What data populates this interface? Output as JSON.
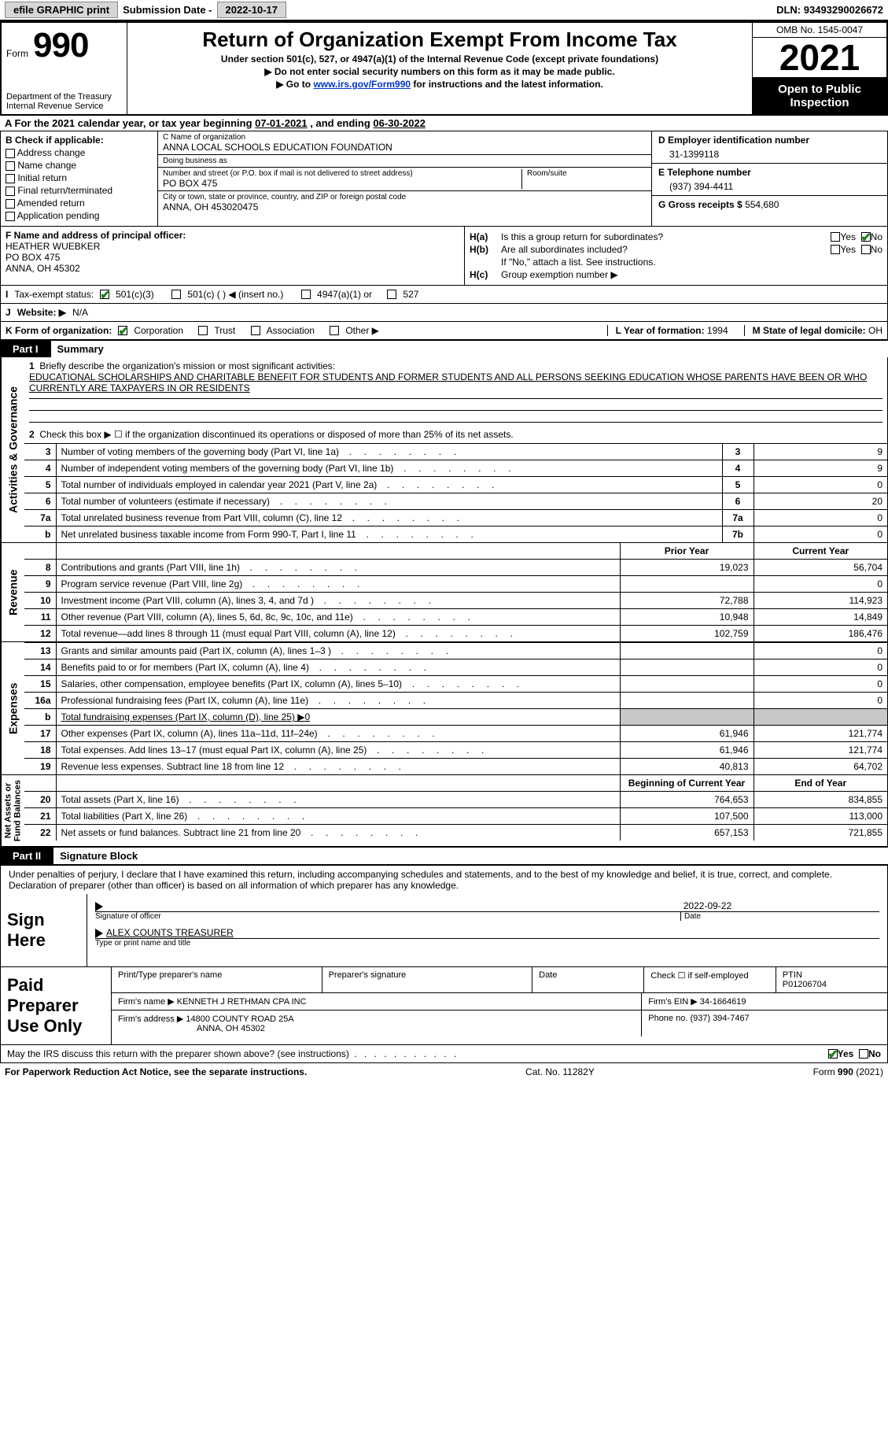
{
  "top": {
    "efile": "efile GRAPHIC print",
    "sub_lbl": "Submission Date -",
    "sub_date": "2022-10-17",
    "dln_lbl": "DLN:",
    "dln": "93493290026672"
  },
  "header": {
    "form_lbl": "Form",
    "form_no": "990",
    "dept": "Department of the Treasury\nInternal Revenue Service",
    "title": "Return of Organization Exempt From Income Tax",
    "sub1": "Under section 501(c), 527, or 4947(a)(1) of the Internal Revenue Code (except private foundations)",
    "sub2": "▶ Do not enter social security numbers on this form as it may be made public.",
    "sub3_a": "▶ Go to ",
    "sub3_link": "www.irs.gov/Form990",
    "sub3_b": " for instructions and the latest information.",
    "omb": "OMB No. 1545-0047",
    "year": "2021",
    "inspect": "Open to Public Inspection"
  },
  "cal": {
    "a": "A For the 2021 calendar year, or tax year beginning ",
    "begin": "07-01-2021",
    "mid": " , and ending ",
    "end": "06-30-2022"
  },
  "B": {
    "lbl": "B Check if applicable:",
    "opts": [
      "Address change",
      "Name change",
      "Initial return",
      "Final return/terminated",
      "Amended return",
      "Application pending"
    ]
  },
  "C": {
    "name_lbl": "C Name of organization",
    "name": "ANNA LOCAL SCHOOLS EDUCATION FOUNDATION",
    "dba_lbl": "Doing business as",
    "dba": "",
    "street_lbl": "Number and street (or P.O. box if mail is not delivered to street address)",
    "room_lbl": "Room/suite",
    "street": "PO BOX 475",
    "city_lbl": "City or town, state or province, country, and ZIP or foreign postal code",
    "city": "ANNA, OH  453020475"
  },
  "D": {
    "lbl": "D Employer identification number",
    "val": "31-1399118"
  },
  "E": {
    "lbl": "E Telephone number",
    "val": "(937) 394-4411"
  },
  "G": {
    "lbl": "G Gross receipts $",
    "val": "554,680"
  },
  "F": {
    "lbl": "F Name and address of principal officer:",
    "name": "HEATHER WUEBKER",
    "addr1": "PO BOX 475",
    "addr2": "ANNA, OH  45302"
  },
  "H": {
    "a_lbl": "H(a)",
    "a_txt": "Is this a group return for subordinates?",
    "b_lbl": "H(b)",
    "b_txt": "Are all subordinates included?",
    "b_note": "If \"No,\" attach a list. See instructions.",
    "c_lbl": "H(c)",
    "c_txt": "Group exemption number ▶",
    "yes": "Yes",
    "no": "No"
  },
  "I": {
    "lbl": "I",
    "txt": "Tax-exempt status:",
    "o1": "501(c)(3)",
    "o2": "501(c) (   ) ◀ (insert no.)",
    "o3": "4947(a)(1) or",
    "o4": "527"
  },
  "J": {
    "lbl": "J",
    "txt": "Website: ▶",
    "val": "N/A"
  },
  "K": {
    "lbl": "K Form of organization:",
    "o1": "Corporation",
    "o2": "Trust",
    "o3": "Association",
    "o4": "Other ▶",
    "L_lbl": "L Year of formation:",
    "L_val": "1994",
    "M_lbl": "M State of legal domicile:",
    "M_val": "OH"
  },
  "parts": {
    "p1": "Part I",
    "p1t": "Summary",
    "p2": "Part II",
    "p2t": "Signature Block"
  },
  "sides": {
    "ag": "Activities & Governance",
    "rev": "Revenue",
    "exp": "Expenses",
    "na": "Net Assets or\nFund Balances"
  },
  "summary": {
    "l1_lbl": "1",
    "l1_txt": "Briefly describe the organization's mission or most significant activities:",
    "mission": "EDUCATIONAL SCHOLARSHIPS AND CHARITABLE BENEFIT FOR STUDENTS AND FORMER STUDENTS AND ALL PERSONS SEEKING EDUCATION WHOSE PARENTS HAVE BEEN OR WHO CURRENTLY ARE TAXPAYERS IN OR RESIDENTS",
    "l2_lbl": "2",
    "l2_txt": "Check this box ▶ ☐ if the organization discontinued its operations or disposed of more than 25% of its net assets.",
    "rows_ag": [
      {
        "n": "3",
        "t": "Number of voting members of the governing body (Part VI, line 1a)",
        "box": "3",
        "v": "9"
      },
      {
        "n": "4",
        "t": "Number of independent voting members of the governing body (Part VI, line 1b)",
        "box": "4",
        "v": "9"
      },
      {
        "n": "5",
        "t": "Total number of individuals employed in calendar year 2021 (Part V, line 2a)",
        "box": "5",
        "v": "0"
      },
      {
        "n": "6",
        "t": "Total number of volunteers (estimate if necessary)",
        "box": "6",
        "v": "20"
      },
      {
        "n": "7a",
        "t": "Total unrelated business revenue from Part VIII, column (C), line 12",
        "box": "7a",
        "v": "0"
      },
      {
        "n": "b",
        "t": "Net unrelated business taxable income from Form 990-T, Part I, line 11",
        "box": "7b",
        "v": "0"
      }
    ],
    "hdr_prior": "Prior Year",
    "hdr_curr": "Current Year",
    "rows_rev": [
      {
        "n": "8",
        "t": "Contributions and grants (Part VIII, line 1h)",
        "p": "19,023",
        "c": "56,704"
      },
      {
        "n": "9",
        "t": "Program service revenue (Part VIII, line 2g)",
        "p": "",
        "c": "0"
      },
      {
        "n": "10",
        "t": "Investment income (Part VIII, column (A), lines 3, 4, and 7d )",
        "p": "72,788",
        "c": "114,923"
      },
      {
        "n": "11",
        "t": "Other revenue (Part VIII, column (A), lines 5, 6d, 8c, 9c, 10c, and 11e)",
        "p": "10,948",
        "c": "14,849"
      },
      {
        "n": "12",
        "t": "Total revenue—add lines 8 through 11 (must equal Part VIII, column (A), line 12)",
        "p": "102,759",
        "c": "186,476"
      }
    ],
    "rows_exp": [
      {
        "n": "13",
        "t": "Grants and similar amounts paid (Part IX, column (A), lines 1–3 )",
        "p": "",
        "c": "0"
      },
      {
        "n": "14",
        "t": "Benefits paid to or for members (Part IX, column (A), line 4)",
        "p": "",
        "c": "0"
      },
      {
        "n": "15",
        "t": "Salaries, other compensation, employee benefits (Part IX, column (A), lines 5–10)",
        "p": "",
        "c": "0"
      },
      {
        "n": "16a",
        "t": "Professional fundraising fees (Part IX, column (A), line 11e)",
        "p": "",
        "c": "0"
      },
      {
        "n": "b",
        "t": "Total fundraising expenses (Part IX, column (D), line 25) ▶0",
        "p": "shade",
        "c": "shade"
      },
      {
        "n": "17",
        "t": "Other expenses (Part IX, column (A), lines 11a–11d, 11f–24e)",
        "p": "61,946",
        "c": "121,774"
      },
      {
        "n": "18",
        "t": "Total expenses. Add lines 13–17 (must equal Part IX, column (A), line 25)",
        "p": "61,946",
        "c": "121,774"
      },
      {
        "n": "19",
        "t": "Revenue less expenses. Subtract line 18 from line 12",
        "p": "40,813",
        "c": "64,702"
      }
    ],
    "hdr_begin": "Beginning of Current Year",
    "hdr_end": "End of Year",
    "rows_na": [
      {
        "n": "20",
        "t": "Total assets (Part X, line 16)",
        "p": "764,653",
        "c": "834,855"
      },
      {
        "n": "21",
        "t": "Total liabilities (Part X, line 26)",
        "p": "107,500",
        "c": "113,000"
      },
      {
        "n": "22",
        "t": "Net assets or fund balances. Subtract line 21 from line 20",
        "p": "657,153",
        "c": "721,855"
      }
    ]
  },
  "sig": {
    "decl": "Under penalties of perjury, I declare that I have examined this return, including accompanying schedules and statements, and to the best of my knowledge and belief, it is true, correct, and complete. Declaration of preparer (other than officer) is based on all information of which preparer has any knowledge.",
    "sign_here": "Sign Here",
    "sig_of_officer": "Signature of officer",
    "date_lbl": "Date",
    "sig_date": "2022-09-22",
    "name_title": "ALEX COUNTS  TREASURER",
    "name_title_lbl": "Type or print name and title"
  },
  "prep": {
    "title": "Paid Preparer Use Only",
    "h_name": "Print/Type preparer's name",
    "h_sig": "Preparer's signature",
    "h_date": "Date",
    "h_check": "Check ☐ if self-employed",
    "h_ptin_lbl": "PTIN",
    "ptin": "P01206704",
    "firm_name_lbl": "Firm's name    ▶",
    "firm_name": "KENNETH J RETHMAN CPA INC",
    "firm_ein_lbl": "Firm's EIN ▶",
    "firm_ein": "34-1664619",
    "firm_addr_lbl": "Firm's address ▶",
    "firm_addr1": "14800 COUNTY ROAD 25A",
    "firm_addr2": "ANNA, OH  45302",
    "phone_lbl": "Phone no.",
    "phone": "(937) 394-7467"
  },
  "discuss": {
    "txt": "May the IRS discuss this return with the preparer shown above? (see instructions)",
    "yes": "Yes",
    "no": "No"
  },
  "footer": {
    "left": "For Paperwork Reduction Act Notice, see the separate instructions.",
    "mid": "Cat. No. 11282Y",
    "right": "Form 990 (2021)"
  },
  "colors": {
    "link": "#0033cc",
    "check": "#1a7f1a",
    "shade": "#c8c8c8",
    "btn": "#d6d6d6"
  }
}
